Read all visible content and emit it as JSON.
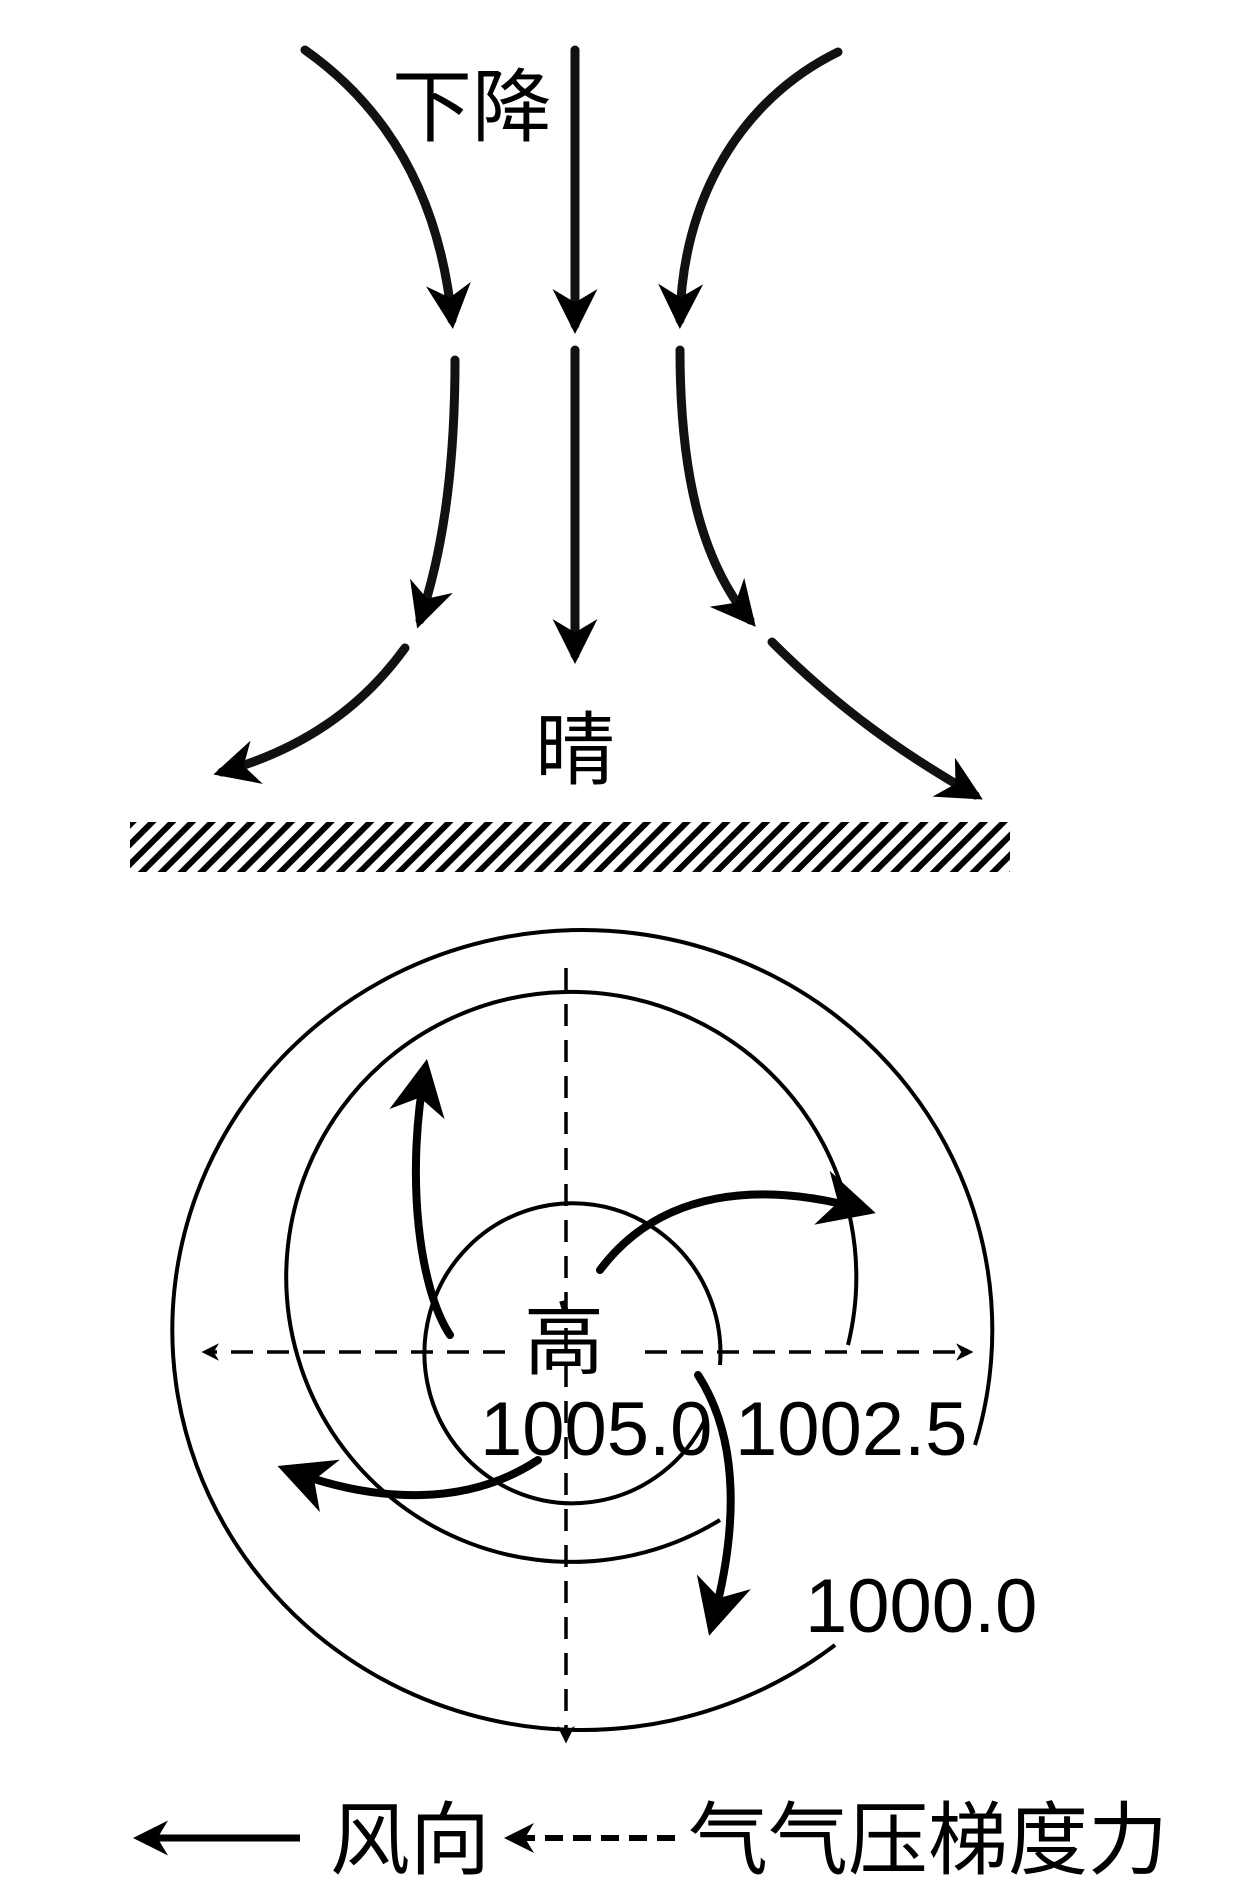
{
  "top_diagram": {
    "descent_label": "下降",
    "weather_label": "晴"
  },
  "bottom_diagram": {
    "center_label": "高",
    "isobars": [
      {
        "label": "1005.0",
        "value": 1005.0
      },
      {
        "label": "1002.5",
        "value": 1002.5
      },
      {
        "label": "1000.0",
        "value": 1000.0
      }
    ]
  },
  "legend": {
    "wind_direction_label": "风向",
    "pressure_gradient_label": "气气压梯度力"
  }
}
